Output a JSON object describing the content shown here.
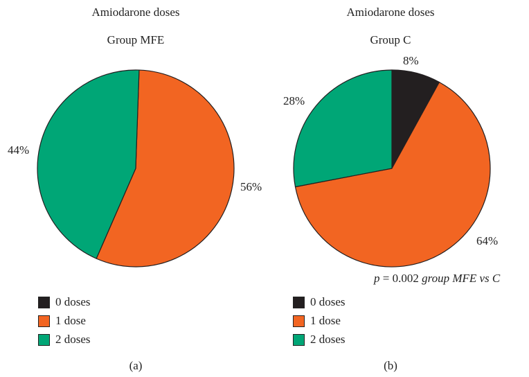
{
  "chart_data": [
    {
      "type": "pie",
      "title": "Amiodarone doses",
      "subtitle": "Group MFE",
      "caption": "(a)",
      "slices": [
        {
          "label": "0 doses",
          "value": 0,
          "color": "#231f20",
          "display": ""
        },
        {
          "label": "1 dose",
          "value": 56,
          "color": "#f26522",
          "display": "56%"
        },
        {
          "label": "2 doses",
          "value": 44,
          "color": "#00a676",
          "display": "44%"
        }
      ],
      "legend": [
        "0 doses",
        "1 dose",
        "2 doses"
      ]
    },
    {
      "type": "pie",
      "title": "Amiodarone doses",
      "subtitle": "Group C",
      "caption": "(b)",
      "slices": [
        {
          "label": "0 doses",
          "value": 8,
          "color": "#231f20",
          "display": "8%"
        },
        {
          "label": "1 dose",
          "value": 64,
          "color": "#f26522",
          "display": "64%"
        },
        {
          "label": "2 doses",
          "value": 28,
          "color": "#00a676",
          "display": "28%"
        }
      ],
      "legend": [
        "0 doses",
        "1 dose",
        "2 doses"
      ],
      "annotation": {
        "p": "p",
        "equals": " = 0.002 ",
        "text": "group MFE vs C"
      }
    }
  ]
}
